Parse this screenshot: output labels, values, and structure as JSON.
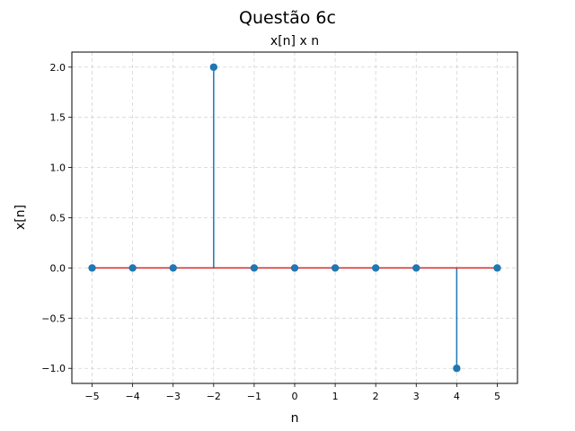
{
  "chart_data": {
    "type": "stem",
    "suptitle": "Questão 6c",
    "title": "x[n] x n",
    "xlabel": "n",
    "ylabel": "x[n]",
    "n": [
      -5,
      -4,
      -3,
      -2,
      -1,
      0,
      1,
      2,
      3,
      4,
      5
    ],
    "values": [
      0,
      0,
      0,
      2,
      0,
      0,
      0,
      0,
      0,
      -1,
      0
    ],
    "xlim": [
      -5.5,
      5.5
    ],
    "ylim": [
      -1.15,
      2.15
    ],
    "xticks": [
      -5,
      -4,
      -3,
      -2,
      -1,
      0,
      1,
      2,
      3,
      4,
      5
    ],
    "xtick_labels": [
      "−5",
      "−4",
      "−3",
      "−2",
      "−1",
      "0",
      "1",
      "2",
      "3",
      "4",
      "5"
    ],
    "yticks": [
      -1.0,
      -0.5,
      0.0,
      0.5,
      1.0,
      1.5,
      2.0
    ],
    "ytick_labels": [
      "−1.0",
      "−0.5",
      "0.0",
      "0.5",
      "1.0",
      "1.5",
      "2.0"
    ],
    "grid": true,
    "colors": {
      "stem": "#1f77b4",
      "marker": "#1f77b4",
      "baseline": "#d62728",
      "grid": "#d3d3d3"
    }
  }
}
